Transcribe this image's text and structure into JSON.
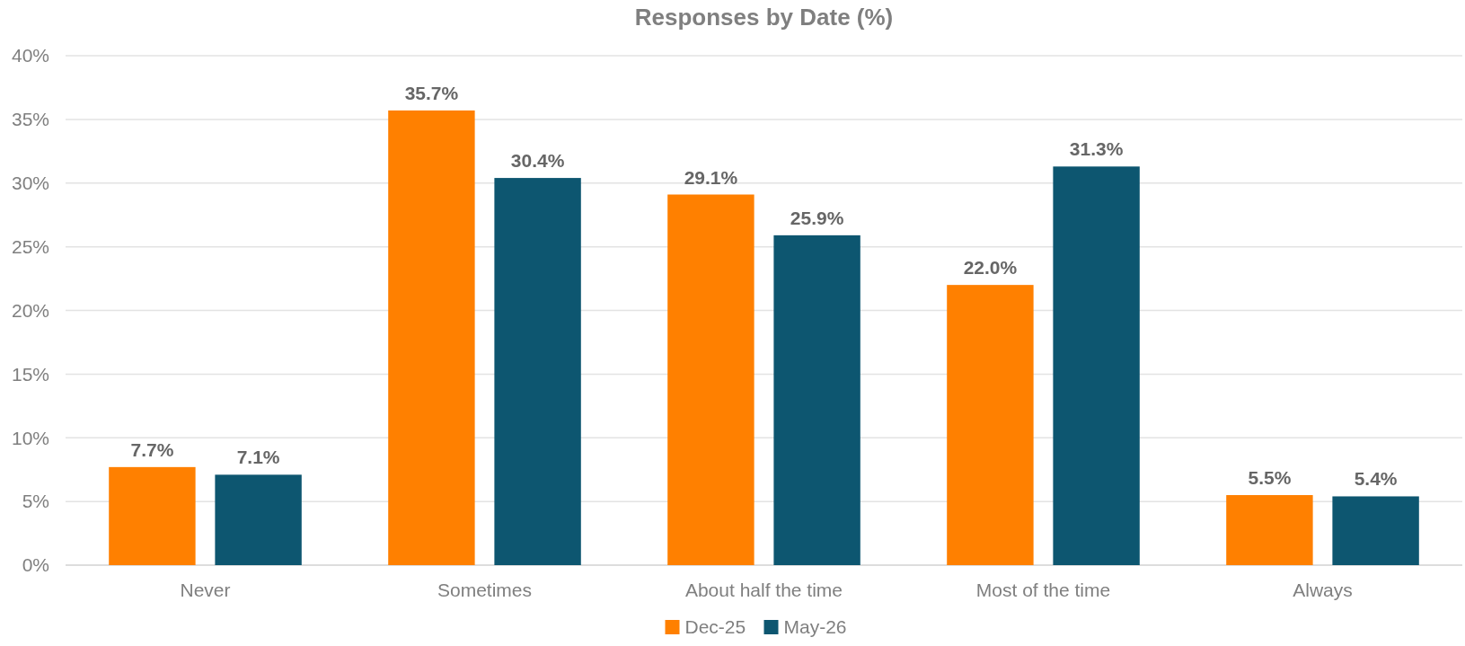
{
  "chart_data": {
    "type": "bar",
    "title": "Responses by Date (%)",
    "categories": [
      "Never",
      "Sometimes",
      "About half the time",
      "Most of the time",
      "Always"
    ],
    "series": [
      {
        "name": "Dec-25",
        "color": "#ff8000",
        "values": [
          7.7,
          35.7,
          29.1,
          22.0,
          5.5
        ],
        "value_labels": [
          "7.7%",
          "35.7%",
          "29.1%",
          "22.0%",
          "5.5%"
        ]
      },
      {
        "name": "May-26",
        "color": "#0d5670",
        "values": [
          7.1,
          30.4,
          25.9,
          31.3,
          5.4
        ],
        "value_labels": [
          "7.1%",
          "30.4%",
          "25.9%",
          "31.3%",
          "5.4%"
        ]
      }
    ],
    "ylim": [
      0,
      40
    ],
    "yticks": [
      {
        "value": 0,
        "label": "0%"
      },
      {
        "value": 5,
        "label": "5%"
      },
      {
        "value": 10,
        "label": "10%"
      },
      {
        "value": 15,
        "label": "15%"
      },
      {
        "value": 20,
        "label": "20%"
      },
      {
        "value": 25,
        "label": "25%"
      },
      {
        "value": 30,
        "label": "30%"
      },
      {
        "value": 35,
        "label": "35%"
      },
      {
        "value": 40,
        "label": "40%"
      }
    ],
    "grid": "y",
    "legend": "bottom"
  }
}
